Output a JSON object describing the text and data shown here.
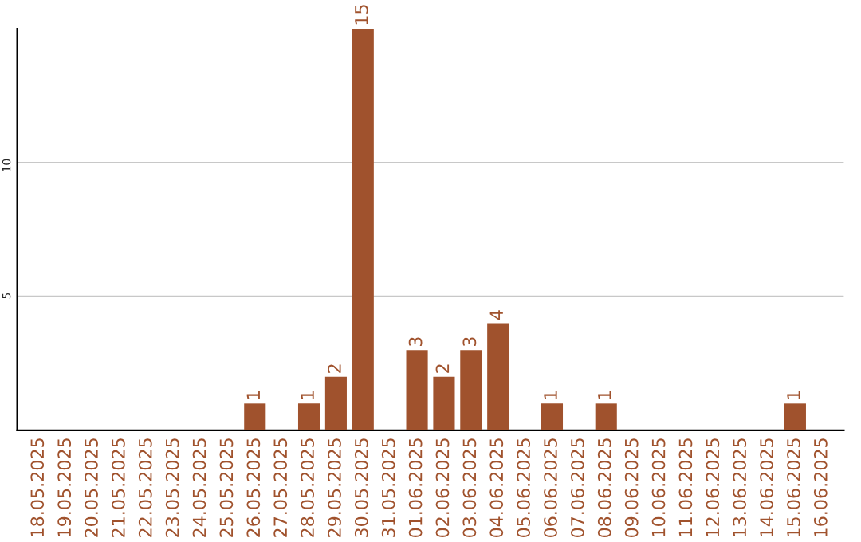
{
  "chart_data": {
    "type": "bar",
    "categories": [
      "18.05.2025",
      "19.05.2025",
      "20.05.2025",
      "21.05.2025",
      "22.05.2025",
      "23.05.2025",
      "24.05.2025",
      "25.05.2025",
      "26.05.2025",
      "27.05.2025",
      "28.05.2025",
      "29.05.2025",
      "30.05.2025",
      "31.05.2025",
      "01.06.2025",
      "02.06.2025",
      "03.06.2025",
      "04.06.2025",
      "05.06.2025",
      "06.06.2025",
      "07.06.2025",
      "08.06.2025",
      "09.06.2025",
      "10.06.2025",
      "11.06.2025",
      "12.06.2025",
      "13.06.2025",
      "14.06.2025",
      "15.06.2025",
      "16.06.2025"
    ],
    "values": [
      0,
      0,
      0,
      0,
      0,
      0,
      0,
      0,
      1,
      0,
      1,
      2,
      15,
      0,
      3,
      2,
      3,
      4,
      0,
      1,
      0,
      1,
      0,
      0,
      0,
      0,
      0,
      0,
      1,
      0
    ],
    "value_labels": [
      null,
      null,
      null,
      null,
      null,
      null,
      null,
      null,
      "1",
      null,
      "1",
      "2",
      "15",
      null,
      "3",
      "2",
      "3",
      "4",
      null,
      "1",
      null,
      "1",
      null,
      null,
      null,
      null,
      null,
      null,
      "1",
      null
    ],
    "color": "#a0522d",
    "ylim": [
      0,
      15
    ],
    "yticks": [
      5,
      10
    ],
    "grid": "y"
  }
}
